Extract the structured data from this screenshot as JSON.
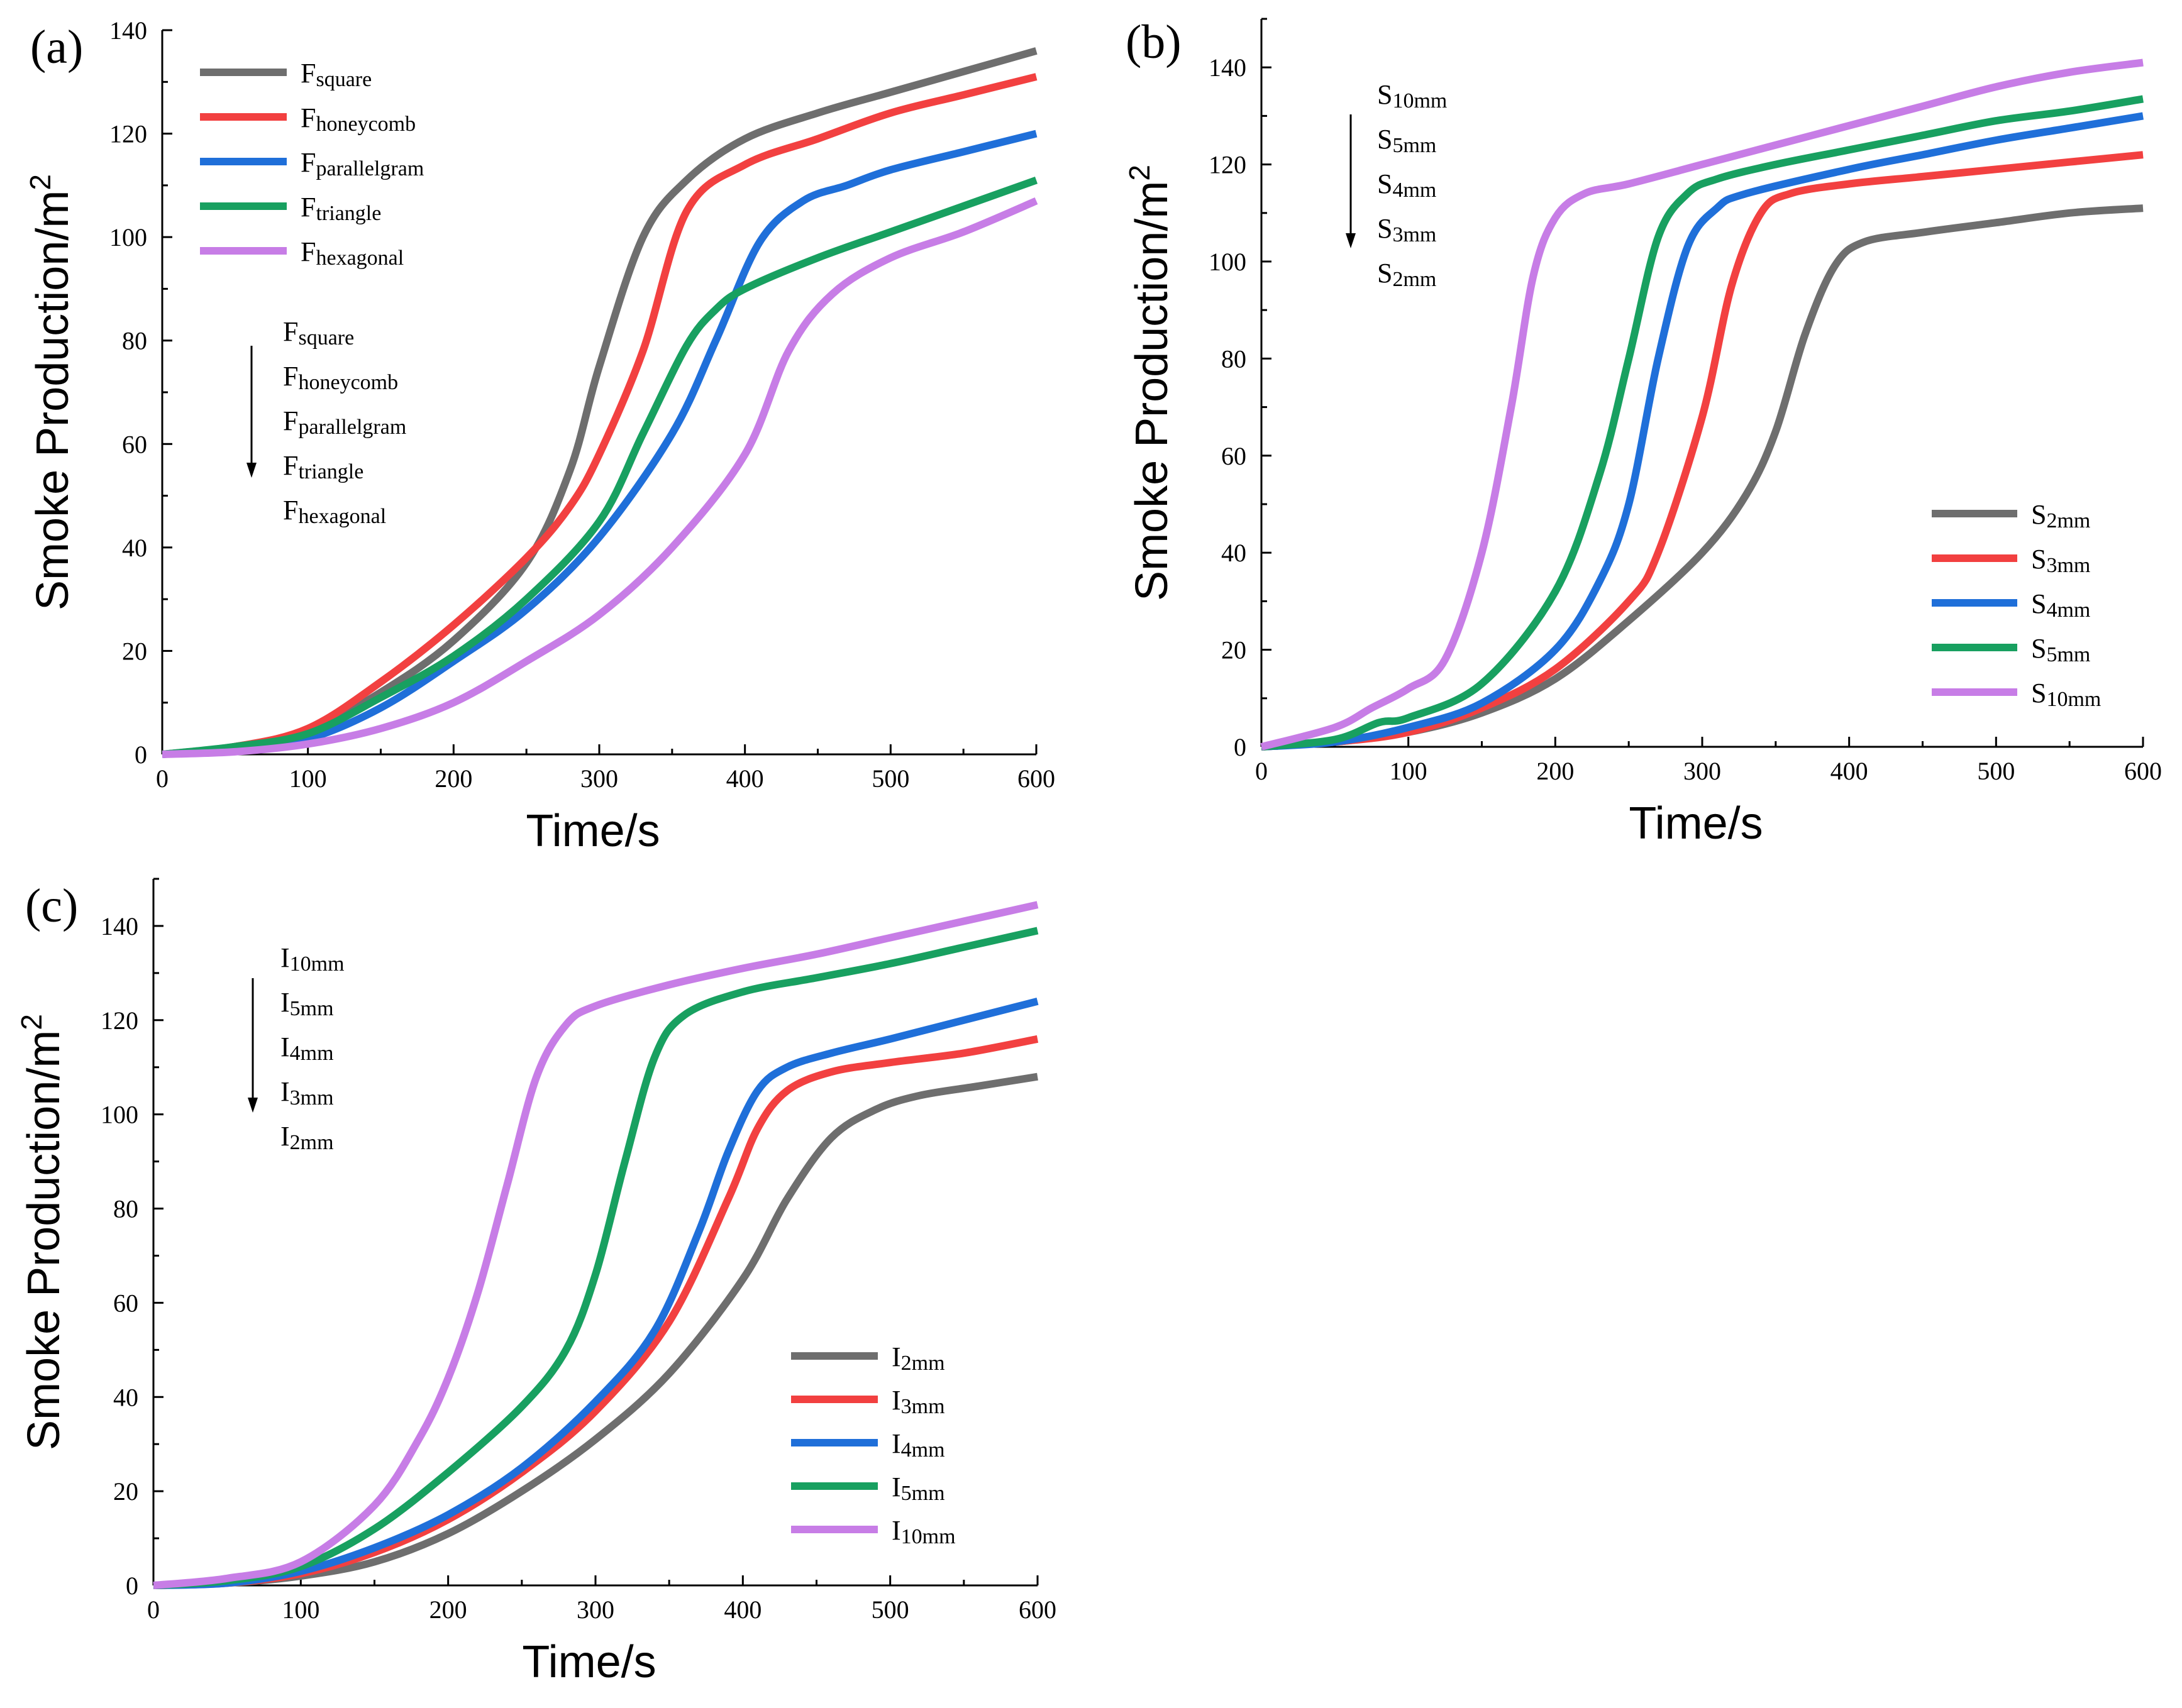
{
  "colors": {
    "gray": "#6e6e6e",
    "red": "#f24040",
    "blue": "#1f6fd9",
    "green": "#18a060",
    "purple": "#c77de6"
  },
  "chart_data": [
    {
      "type": "line",
      "panel_label": "(a)",
      "xlabel": "Time/s",
      "ylabel": "Smoke Production/m",
      "ylabel_sup": "2",
      "xlim": [
        0,
        600
      ],
      "ylim": [
        0,
        140
      ],
      "xticks": [
        0,
        100,
        200,
        300,
        400,
        500,
        600
      ],
      "yticks": [
        0,
        20,
        40,
        60,
        80,
        100,
        120,
        140
      ],
      "grid": false,
      "legend_position": "top-left",
      "series": [
        {
          "name": "square",
          "label_main": "F",
          "label_sub": "square",
          "color": "#6e6e6e",
          "x": [
            0,
            50,
            100,
            150,
            200,
            250,
            280,
            300,
            330,
            360,
            400,
            450,
            500,
            550,
            600
          ],
          "y": [
            0,
            1.5,
            4.5,
            12,
            22,
            37,
            55,
            75,
            100,
            111,
            119,
            124,
            128,
            132,
            136
          ]
        },
        {
          "name": "honeycomb",
          "label_main": "F",
          "label_sub": "honeycomb",
          "color": "#f24040",
          "x": [
            0,
            50,
            100,
            150,
            200,
            250,
            280,
            300,
            330,
            360,
            400,
            450,
            500,
            550,
            600
          ],
          "y": [
            0,
            1.5,
            5,
            14,
            25,
            38,
            48,
            58,
            78,
            105,
            114,
            119,
            124,
            127.5,
            131
          ]
        },
        {
          "name": "parallelgram",
          "label_main": "F",
          "label_sub": "parallelgram",
          "color": "#1f6fd9",
          "x": [
            0,
            50,
            100,
            150,
            200,
            250,
            300,
            350,
            380,
            410,
            440,
            470,
            500,
            550,
            600
          ],
          "y": [
            0,
            1,
            3,
            9,
            18,
            28,
            42,
            62,
            80,
            99,
            107,
            110,
            113,
            116.5,
            120
          ]
        },
        {
          "name": "triangle",
          "label_main": "F",
          "label_sub": "triangle",
          "color": "#18a060",
          "x": [
            0,
            50,
            100,
            150,
            200,
            250,
            300,
            330,
            360,
            380,
            400,
            450,
            500,
            550,
            600
          ],
          "y": [
            0,
            1.5,
            4,
            11,
            19,
            30,
            45,
            62,
            79,
            86,
            90,
            96,
            101,
            106,
            111
          ]
        },
        {
          "name": "hexagonal",
          "label_main": "F",
          "label_sub": "hexagonal",
          "color": "#c77de6",
          "x": [
            0,
            50,
            100,
            150,
            200,
            250,
            300,
            350,
            400,
            430,
            460,
            500,
            550,
            600
          ],
          "y": [
            0,
            0.5,
            2,
            5,
            10,
            18,
            27,
            40,
            58,
            78,
            89,
            96,
            101,
            107
          ]
        }
      ],
      "order_annotation": {
        "items": [
          {
            "main": "F",
            "sub": "square"
          },
          {
            "main": "F",
            "sub": "honeycomb"
          },
          {
            "main": "F",
            "sub": "parallelgram"
          },
          {
            "main": "F",
            "sub": "triangle"
          },
          {
            "main": "F",
            "sub": "hexagonal"
          }
        ]
      }
    },
    {
      "type": "line",
      "panel_label": "(b)",
      "xlabel": "Time/s",
      "ylabel": "Smoke Production/m",
      "ylabel_sup": "2",
      "xlim": [
        0,
        600
      ],
      "ylim": [
        0,
        150
      ],
      "xticks": [
        0,
        100,
        200,
        300,
        400,
        500,
        600
      ],
      "yticks": [
        0,
        20,
        40,
        60,
        80,
        100,
        120,
        140
      ],
      "grid": false,
      "legend_position": "bottom-right",
      "series": [
        {
          "name": "S2mm",
          "label_main": "S",
          "label_sub": "2mm",
          "color": "#6e6e6e",
          "x": [
            0,
            50,
            100,
            150,
            200,
            250,
            300,
            330,
            350,
            370,
            390,
            410,
            450,
            500,
            550,
            600
          ],
          "y": [
            0,
            1,
            3,
            7,
            14,
            26,
            40,
            52,
            65,
            85,
            99,
            104,
            106,
            108,
            110,
            111
          ]
        },
        {
          "name": "S3mm",
          "label_main": "S",
          "label_sub": "3mm",
          "color": "#f24040",
          "x": [
            0,
            50,
            100,
            150,
            200,
            250,
            270,
            300,
            320,
            340,
            360,
            400,
            450,
            500,
            550,
            600
          ],
          "y": [
            0,
            1,
            3,
            8,
            16,
            30,
            40,
            68,
            95,
            110,
            114,
            116,
            117.5,
            119,
            120.5,
            122
          ]
        },
        {
          "name": "S4mm",
          "label_main": "S",
          "label_sub": "4mm",
          "color": "#1f6fd9",
          "x": [
            0,
            50,
            100,
            150,
            200,
            230,
            250,
            270,
            290,
            310,
            330,
            400,
            450,
            500,
            550,
            600
          ],
          "y": [
            0,
            1,
            4,
            9,
            20,
            34,
            50,
            80,
            103,
            111,
            114,
            119,
            122,
            125,
            127.5,
            130
          ]
        },
        {
          "name": "S5mm",
          "label_main": "S",
          "label_sub": "5mm",
          "color": "#18a060",
          "x": [
            0,
            50,
            80,
            100,
            150,
            200,
            230,
            250,
            270,
            290,
            310,
            350,
            400,
            450,
            500,
            550,
            600
          ],
          "y": [
            0,
            1.5,
            5,
            6,
            13,
            32,
            56,
            80,
            105,
            114,
            117,
            120,
            123,
            126,
            129,
            131,
            133.5
          ]
        },
        {
          "name": "S10mm",
          "label_main": "S",
          "label_sub": "10mm",
          "color": "#c77de6",
          "x": [
            0,
            50,
            75,
            100,
            125,
            150,
            170,
            185,
            200,
            220,
            250,
            300,
            350,
            400,
            450,
            500,
            550,
            600
          ],
          "y": [
            0,
            4,
            8,
            12,
            18,
            40,
            70,
            97,
            109,
            114,
            116,
            120,
            124,
            128,
            132,
            136,
            139,
            141
          ]
        }
      ],
      "order_annotation": {
        "items": [
          {
            "main": "S",
            "sub": "10mm"
          },
          {
            "main": "S",
            "sub": "5mm"
          },
          {
            "main": "S",
            "sub": "4mm"
          },
          {
            "main": "S",
            "sub": "3mm"
          },
          {
            "main": "S",
            "sub": "2mm"
          }
        ]
      }
    },
    {
      "type": "line",
      "panel_label": "(c)",
      "xlabel": "Time/s",
      "ylabel": "Smoke Production/m",
      "ylabel_sup": "2",
      "xlim": [
        0,
        600
      ],
      "ylim": [
        0,
        150
      ],
      "xticks": [
        0,
        100,
        200,
        300,
        400,
        500,
        600
      ],
      "yticks": [
        0,
        20,
        40,
        60,
        80,
        100,
        120,
        140
      ],
      "grid": false,
      "legend_position": "bottom-right",
      "series": [
        {
          "name": "I2mm",
          "label_main": "I",
          "label_sub": "2mm",
          "color": "#6e6e6e",
          "x": [
            0,
            50,
            100,
            150,
            200,
            250,
            300,
            350,
            400,
            430,
            460,
            490,
            520,
            560,
            600
          ],
          "y": [
            0,
            0.5,
            2,
            5,
            11,
            20,
            31,
            45,
            65,
            82,
            95,
            101,
            104,
            106,
            108
          ]
        },
        {
          "name": "I3mm",
          "label_main": "I",
          "label_sub": "3mm",
          "color": "#f24040",
          "x": [
            0,
            50,
            100,
            150,
            200,
            250,
            300,
            350,
            390,
            410,
            430,
            460,
            500,
            550,
            600
          ],
          "y": [
            0,
            0.5,
            2.5,
            7,
            14,
            24,
            37,
            56,
            82,
            97,
            105,
            109,
            111,
            113,
            116
          ]
        },
        {
          "name": "I4mm",
          "label_main": "I",
          "label_sub": "4mm",
          "color": "#1f6fd9",
          "x": [
            0,
            50,
            100,
            150,
            200,
            250,
            300,
            340,
            370,
            390,
            410,
            430,
            460,
            500,
            550,
            600
          ],
          "y": [
            0,
            0.5,
            3,
            8,
            15,
            25,
            39,
            54,
            75,
            92,
            105,
            110,
            113,
            116,
            120,
            124
          ]
        },
        {
          "name": "I5mm",
          "label_main": "I",
          "label_sub": "5mm",
          "color": "#18a060",
          "x": [
            0,
            50,
            100,
            150,
            200,
            250,
            280,
            300,
            320,
            340,
            360,
            400,
            450,
            500,
            550,
            600
          ],
          "y": [
            0,
            1,
            4,
            12,
            24,
            38,
            50,
            66,
            90,
            112,
            121,
            126,
            129,
            132,
            135.5,
            139
          ]
        },
        {
          "name": "I10mm",
          "label_main": "I",
          "label_sub": "10mm",
          "color": "#c77de6",
          "x": [
            0,
            50,
            100,
            150,
            180,
            200,
            220,
            240,
            260,
            280,
            300,
            350,
            400,
            450,
            500,
            550,
            600
          ],
          "y": [
            0,
            1.5,
            5,
            17,
            31,
            44,
            62,
            85,
            108,
            119,
            123,
            127.5,
            131,
            134,
            137.5,
            141,
            144.5
          ]
        }
      ],
      "order_annotation": {
        "items": [
          {
            "main": "I",
            "sub": "10mm"
          },
          {
            "main": "I",
            "sub": "5mm"
          },
          {
            "main": "I",
            "sub": "4mm"
          },
          {
            "main": "I",
            "sub": "3mm"
          },
          {
            "main": "I",
            "sub": "2mm"
          }
        ]
      }
    }
  ]
}
